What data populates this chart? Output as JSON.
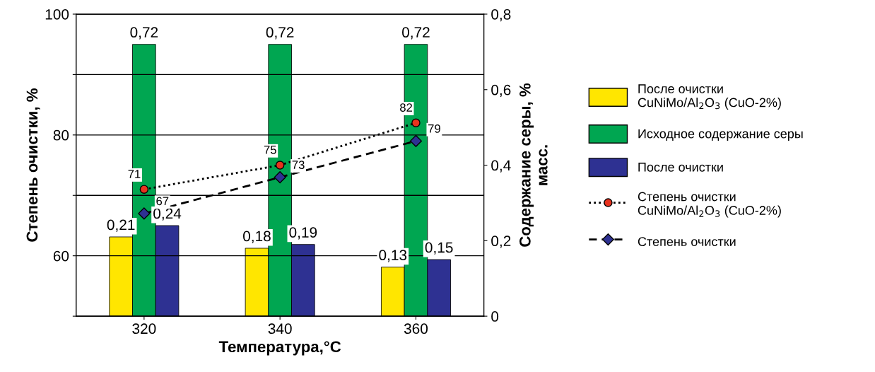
{
  "chart_data": {
    "type": "bar",
    "xlabel": "Температура,°C",
    "ylabel": "Степень очистки, %",
    "y2label": "Содержание серы, %\nмасс.",
    "categories": [
      "320",
      "340",
      "360"
    ],
    "series": [
      {
        "axis": "y2",
        "name": "После очистки\nCuNiMo/Al$_{2}$O$_{3}$ (CuO-2%)",
        "color": "#ffe600",
        "values": [
          0.21,
          0.18,
          0.13
        ],
        "value_labels": [
          "0,21",
          "0,18",
          "0,13"
        ]
      },
      {
        "axis": "y2",
        "name": "Исходное содержание серы",
        "color": "#00a651",
        "values": [
          0.72,
          0.72,
          0.72
        ],
        "value_labels": [
          "0,72",
          "0,72",
          "0,72"
        ]
      },
      {
        "axis": "y2",
        "name": "После очистки",
        "color": "#2e3192",
        "values": [
          0.24,
          0.19,
          0.15
        ],
        "value_labels": [
          "0,24",
          "0,19",
          "0,15"
        ]
      },
      {
        "type": "line",
        "name": "Степень очистки\nCuNiMo/Al$_{2}$O$_{3}$ (CuO-2%)",
        "color": "#e8321e",
        "marker": "circle",
        "line_style": "dotted",
        "values": [
          71,
          75,
          82
        ],
        "value_labels": [
          "71",
          "75",
          "82"
        ]
      },
      {
        "type": "line",
        "name": "Степень очистки",
        "color": "#2e3192",
        "marker": "diamond",
        "line_style": "dashed",
        "values": [
          67,
          73,
          79
        ],
        "value_labels": [
          "67",
          "73",
          "79"
        ]
      }
    ],
    "ylim": [
      50,
      100
    ],
    "yticks": [
      {
        "value": 50,
        "label": null
      },
      60,
      {
        "value": 70,
        "label": null
      },
      80,
      {
        "value": 90,
        "label": null
      },
      100
    ],
    "y2lim": [
      0,
      0.8
    ],
    "y2ticks": [
      0,
      {
        "value": 0.2,
        "label": "0,2"
      },
      {
        "value": 0.4,
        "label": "0,4"
      },
      {
        "value": 0.6,
        "label": "0,6"
      },
      {
        "value": 0.8,
        "label": "0,8"
      }
    ],
    "grid": true,
    "legend": "right"
  }
}
